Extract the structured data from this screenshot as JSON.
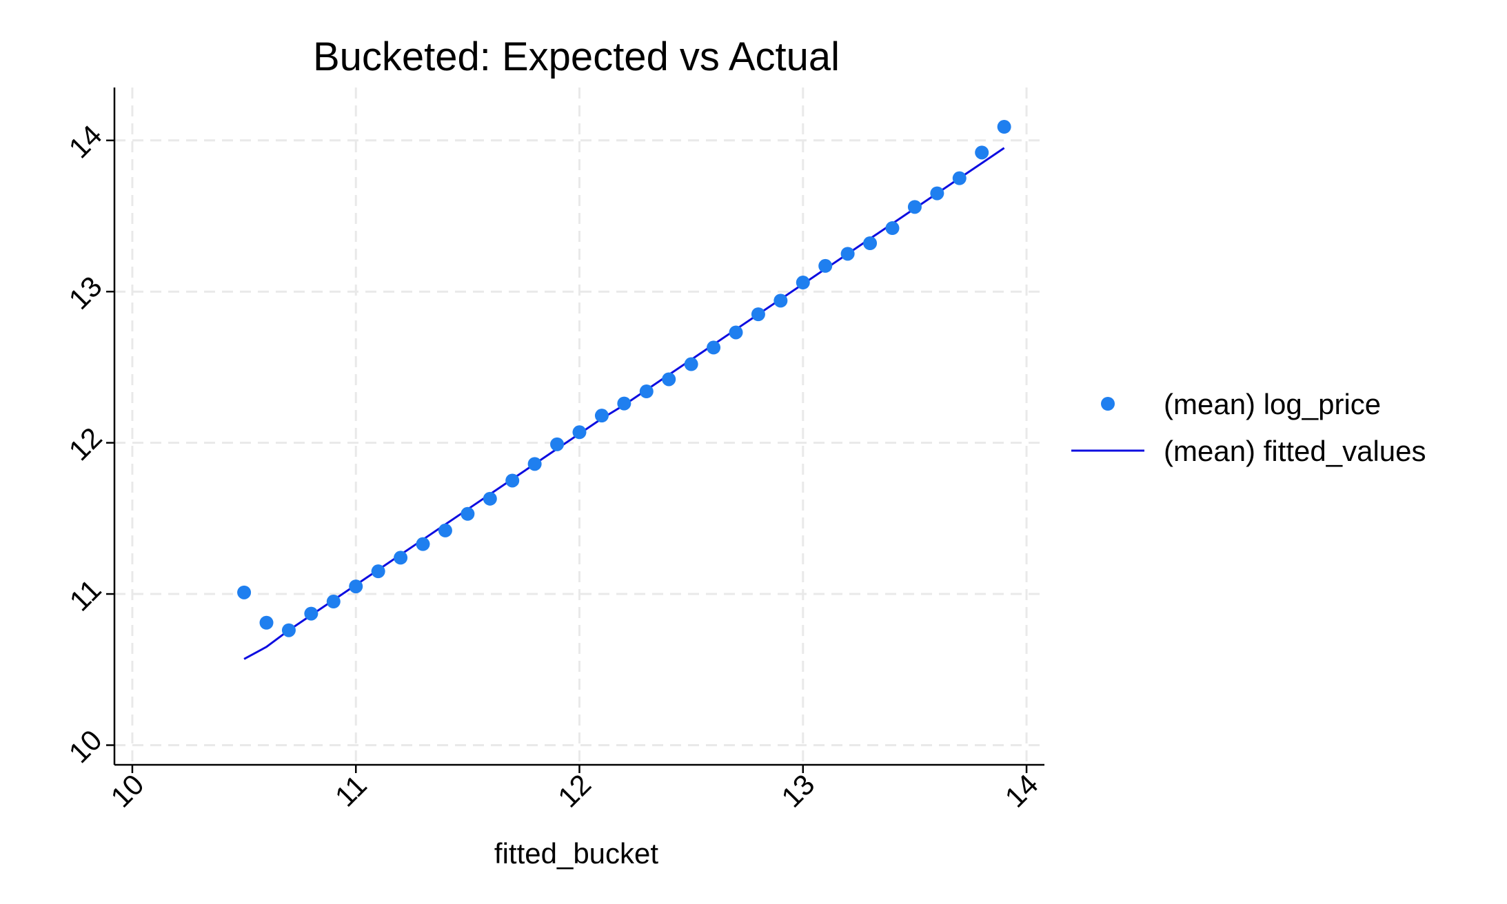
{
  "chart_data": {
    "type": "scatter",
    "title": "Bucketed: Expected vs Actual",
    "xlabel": "fitted_bucket",
    "ylabel": "",
    "xlim": [
      9.92,
      14.08
    ],
    "ylim": [
      9.87,
      14.35
    ],
    "xticks": [
      10,
      11,
      12,
      13,
      14
    ],
    "yticks": [
      10,
      11,
      12,
      13,
      14
    ],
    "grid": true,
    "legend_position": "right",
    "colors": {
      "points": "#1f7fef",
      "line": "#0d0de0",
      "grid": "#e9e9e9",
      "axis": "#000000"
    },
    "series": [
      {
        "name": "(mean) log_price",
        "kind": "scatter",
        "x": [
          10.5,
          10.6,
          10.7,
          10.8,
          10.9,
          11.0,
          11.1,
          11.2,
          11.3,
          11.4,
          11.5,
          11.6,
          11.7,
          11.8,
          11.9,
          12.0,
          12.1,
          12.2,
          12.3,
          12.4,
          12.5,
          12.6,
          12.7,
          12.8,
          12.9,
          13.0,
          13.1,
          13.2,
          13.3,
          13.4,
          13.5,
          13.6,
          13.7,
          13.8,
          13.9
        ],
        "y": [
          11.01,
          10.81,
          10.76,
          10.87,
          10.95,
          11.05,
          11.15,
          11.24,
          11.33,
          11.42,
          11.53,
          11.63,
          11.75,
          11.86,
          11.99,
          12.07,
          12.18,
          12.26,
          12.34,
          12.42,
          12.52,
          12.63,
          12.73,
          12.85,
          12.94,
          13.06,
          13.17,
          13.25,
          13.32,
          13.42,
          13.56,
          13.65,
          13.75,
          13.92,
          14.09
        ]
      },
      {
        "name": "(mean) fitted_values",
        "kind": "line",
        "x": [
          10.5,
          10.6,
          10.7,
          10.8,
          10.9,
          11.0,
          11.1,
          11.2,
          11.3,
          11.4,
          11.5,
          11.6,
          11.7,
          11.8,
          11.9,
          12.0,
          12.1,
          12.2,
          12.3,
          12.4,
          12.5,
          12.6,
          12.7,
          12.8,
          12.9,
          13.0,
          13.1,
          13.2,
          13.3,
          13.4,
          13.5,
          13.6,
          13.7,
          13.8,
          13.9
        ],
        "y": [
          10.57,
          10.65,
          10.76,
          10.86,
          10.96,
          11.06,
          11.16,
          11.26,
          11.36,
          11.46,
          11.56,
          11.66,
          11.76,
          11.86,
          11.96,
          12.06,
          12.16,
          12.25,
          12.35,
          12.45,
          12.55,
          12.65,
          12.75,
          12.85,
          12.95,
          13.05,
          13.15,
          13.25,
          13.35,
          13.45,
          13.55,
          13.65,
          13.75,
          13.85,
          13.95
        ]
      }
    ]
  }
}
